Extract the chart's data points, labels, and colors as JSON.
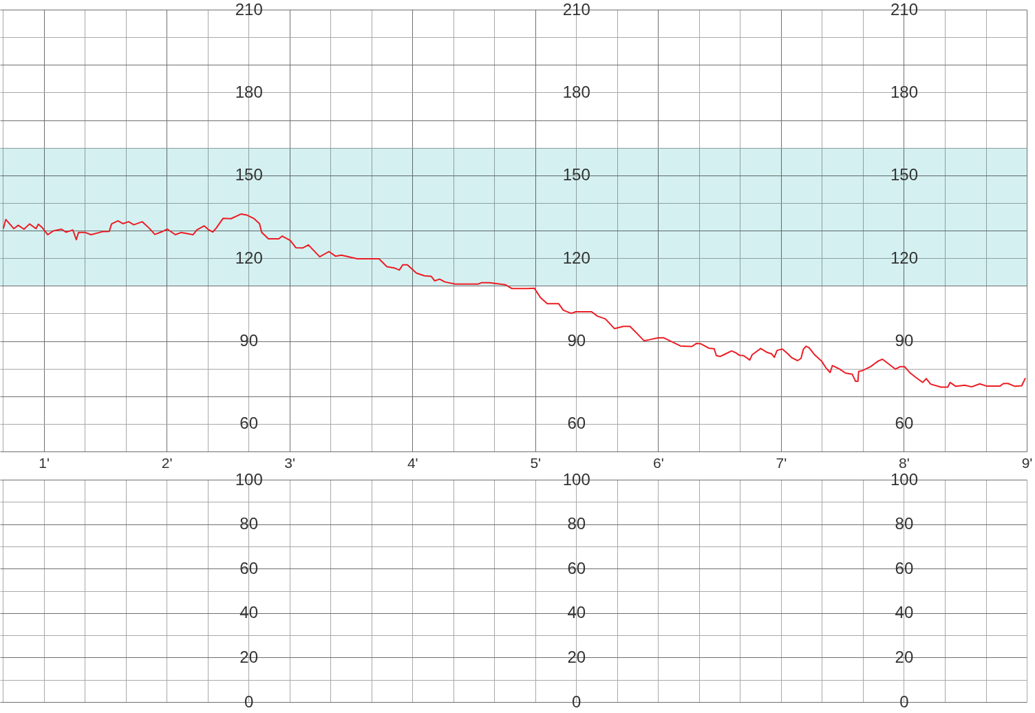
{
  "chart_data": [
    {
      "type": "line",
      "color": "#ec1c24",
      "grid": true,
      "xlim": [
        0.644,
        9
      ],
      "xticks": [
        {
          "value": 0.667,
          "label": null
        },
        {
          "value": 1,
          "label": "1'"
        },
        {
          "value": 1.333,
          "label": null
        },
        {
          "value": 1.667,
          "label": null
        },
        {
          "value": 2,
          "label": "2'"
        },
        {
          "value": 2.333,
          "label": null
        },
        {
          "value": 2.667,
          "label": null
        },
        {
          "value": 3,
          "label": "3'"
        },
        {
          "value": 3.333,
          "label": null
        },
        {
          "value": 3.667,
          "label": null
        },
        {
          "value": 4,
          "label": "4'"
        },
        {
          "value": 4.333,
          "label": null
        },
        {
          "value": 4.667,
          "label": null
        },
        {
          "value": 5,
          "label": "5'"
        },
        {
          "value": 5.333,
          "label": null
        },
        {
          "value": 5.667,
          "label": null
        },
        {
          "value": 6,
          "label": "6'"
        },
        {
          "value": 6.333,
          "label": null
        },
        {
          "value": 6.667,
          "label": null
        },
        {
          "value": 7,
          "label": "7'"
        },
        {
          "value": 7.333,
          "label": null
        },
        {
          "value": 7.667,
          "label": null
        },
        {
          "value": 8,
          "label": "8'"
        },
        {
          "value": 8.333,
          "label": null
        },
        {
          "value": 8.667,
          "label": null
        },
        {
          "value": 9,
          "label": "9'"
        }
      ],
      "ylim": [
        50,
        210
      ],
      "yticks": [
        {
          "value": 50,
          "label": null
        },
        60,
        {
          "value": 70,
          "label": null
        },
        {
          "value": 80,
          "label": null
        },
        90,
        {
          "value": 100,
          "label": null
        },
        {
          "value": 110,
          "label": null
        },
        120,
        {
          "value": 130,
          "label": null
        },
        {
          "value": 140,
          "label": null
        },
        150,
        {
          "value": 160,
          "label": null
        },
        {
          "value": 170,
          "label": null
        },
        180,
        {
          "value": 190,
          "label": null
        },
        {
          "value": 200,
          "label": null
        },
        210
      ],
      "y2lim": [
        50,
        210
      ],
      "y2ticks": [
        60,
        90,
        120,
        150,
        180,
        210
      ],
      "y3lim": [
        50,
        210
      ],
      "y3ticks": [
        60,
        90,
        120,
        150,
        180,
        210
      ],
      "bands": [
        {
          "axis": "y",
          "from": 110,
          "to": 160,
          "color": "#d5f0f1"
        }
      ],
      "x": [
        0.672,
        0.691,
        0.756,
        0.793,
        0.839,
        0.885,
        0.937,
        0.956,
        0.987,
        1.033,
        1.079,
        1.144,
        1.182,
        1.237,
        1.265,
        1.283,
        1.339,
        1.385,
        1.478,
        1.533,
        1.552,
        1.604,
        1.644,
        1.691,
        1.733,
        1.802,
        1.857,
        1.904,
        1.968,
        2.006,
        2.071,
        2.117,
        2.215,
        2.246,
        2.306,
        2.344,
        2.376,
        2.404,
        2.459,
        2.524,
        2.607,
        2.654,
        2.709,
        2.756,
        2.774,
        2.829,
        2.913,
        2.941,
        3.006,
        3.052,
        3.107,
        3.154,
        3.246,
        3.321,
        3.376,
        3.422,
        3.552,
        3.728,
        3.793,
        3.857,
        3.894,
        3.922,
        3.959,
        4.033,
        4.098,
        4.154,
        4.182,
        4.222,
        4.265,
        4.348,
        4.533,
        4.561,
        4.626,
        4.756,
        4.811,
        4.941,
        4.993,
        5.043,
        5.098,
        5.191,
        5.228,
        5.293,
        5.329,
        5.459,
        5.506,
        5.571,
        5.644,
        5.718,
        5.771,
        5.829,
        5.885,
        5.922,
        5.996,
        6.043,
        6.089,
        6.182,
        6.274,
        6.311,
        6.348,
        6.413,
        6.456,
        6.474,
        6.506,
        6.543,
        6.598,
        6.63,
        6.663,
        6.696,
        6.746,
        6.765,
        6.835,
        6.885,
        6.922,
        6.946,
        6.968,
        7.011,
        7.052,
        7.089,
        7.135,
        7.163,
        7.182,
        7.204,
        7.228,
        7.274,
        7.329,
        7.367,
        7.4,
        7.418,
        7.478,
        7.524,
        7.579,
        7.607,
        7.626,
        7.632,
        7.663,
        7.728,
        7.793,
        7.826,
        7.876,
        7.932,
        7.968,
        8.006,
        8.052,
        8.098,
        8.154,
        8.182,
        8.218,
        8.302,
        8.357,
        8.376,
        8.422,
        8.496,
        8.552,
        8.617,
        8.672,
        8.783,
        8.811,
        8.848,
        8.904,
        8.959,
        8.987
      ],
      "values": [
        130.9,
        134.0,
        130.7,
        131.9,
        130.5,
        132.4,
        130.7,
        132.3,
        131.1,
        128.5,
        129.9,
        130.5,
        129.4,
        130.2,
        126.7,
        129.3,
        129.3,
        128.5,
        129.6,
        129.7,
        132.4,
        133.5,
        132.5,
        133.2,
        132.1,
        133.2,
        130.9,
        128.6,
        129.7,
        130.5,
        128.5,
        129.3,
        128.5,
        130.2,
        131.7,
        130.2,
        129.5,
        130.9,
        134.4,
        134.3,
        136.0,
        135.6,
        134.4,
        132.5,
        129.3,
        127.0,
        127.0,
        128.0,
        126.4,
        123.8,
        123.7,
        124.8,
        120.5,
        122.4,
        120.7,
        121.1,
        119.8,
        119.8,
        116.9,
        116.4,
        115.7,
        117.6,
        117.6,
        114.6,
        113.6,
        113.4,
        111.8,
        112.4,
        111.4,
        110.6,
        110.6,
        111.1,
        111.1,
        110.4,
        109.0,
        109.0,
        109.1,
        105.7,
        103.5,
        103.5,
        101.2,
        100.0,
        100.6,
        100.6,
        99.0,
        98.0,
        94.5,
        95.3,
        95.3,
        92.7,
        90.1,
        90.4,
        91.1,
        91.2,
        90.2,
        88.2,
        88.0,
        89.1,
        89.0,
        87.4,
        87.2,
        84.7,
        84.4,
        85.2,
        86.4,
        85.8,
        84.8,
        84.7,
        83.1,
        85.0,
        87.3,
        85.9,
        85.4,
        84.1,
        86.6,
        87.1,
        85.5,
        83.9,
        82.9,
        83.7,
        87.0,
        88.1,
        87.6,
        85.0,
        82.8,
        80.2,
        78.6,
        81.1,
        79.8,
        78.4,
        78.0,
        75.4,
        75.4,
        79.0,
        79.3,
        80.7,
        82.8,
        83.4,
        81.7,
        79.8,
        80.7,
        80.7,
        78.4,
        76.8,
        75.0,
        76.4,
        74.4,
        73.3,
        73.3,
        75.0,
        73.6,
        74.0,
        73.4,
        74.5,
        73.7,
        73.7,
        74.6,
        74.6,
        73.6,
        73.8,
        76.4
      ]
    },
    {
      "type": "line",
      "grid": true,
      "tick_labels": "y",
      "xlim": [
        0.644,
        9
      ],
      "xticks": [
        {
          "value": 0.667,
          "label": null
        },
        {
          "value": 1,
          "label": null
        },
        {
          "value": 1.333,
          "label": null
        },
        {
          "value": 1.667,
          "label": null
        },
        {
          "value": 2,
          "label": null
        },
        {
          "value": 2.333,
          "label": null
        },
        {
          "value": 2.667,
          "label": null
        },
        {
          "value": 3,
          "label": null
        },
        {
          "value": 3.333,
          "label": null
        },
        {
          "value": 3.667,
          "label": null
        },
        {
          "value": 4,
          "label": null
        },
        {
          "value": 4.333,
          "label": null
        },
        {
          "value": 4.667,
          "label": null
        },
        {
          "value": 5,
          "label": null
        },
        {
          "value": 5.333,
          "label": null
        },
        {
          "value": 5.667,
          "label": null
        },
        {
          "value": 6,
          "label": null
        },
        {
          "value": 6.333,
          "label": null
        },
        {
          "value": 6.667,
          "label": null
        },
        {
          "value": 7,
          "label": null
        },
        {
          "value": 7.333,
          "label": null
        },
        {
          "value": 7.667,
          "label": null
        },
        {
          "value": 8,
          "label": null
        },
        {
          "value": 8.333,
          "label": null
        },
        {
          "value": 8.667,
          "label": null
        },
        {
          "value": 9,
          "label": null
        }
      ],
      "ylim": [
        0,
        100
      ],
      "yticks": [
        0,
        {
          "value": 10,
          "label": null
        },
        20,
        {
          "value": 30,
          "label": null
        },
        40,
        {
          "value": 50,
          "label": null
        },
        60,
        {
          "value": 70,
          "label": null
        },
        80,
        {
          "value": 90,
          "label": null
        },
        100
      ],
      "y2lim": [
        0,
        100
      ],
      "y2ticks": [
        0,
        20,
        40,
        60,
        80,
        100
      ],
      "y3lim": [
        0,
        100
      ],
      "y3ticks": [
        0,
        20,
        40,
        60,
        80,
        100
      ]
    }
  ]
}
